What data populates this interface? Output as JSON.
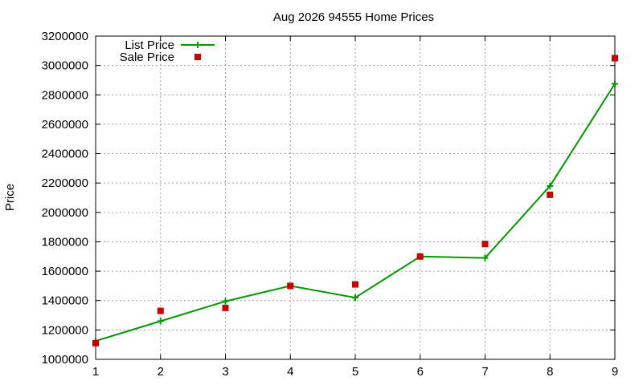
{
  "chart_data": {
    "type": "line",
    "title": "Aug 2026 94555 Home Prices",
    "xlabel": "",
    "ylabel": "Price",
    "x": [
      1,
      2,
      3,
      4,
      5,
      6,
      7,
      8,
      9
    ],
    "xlim": [
      1,
      9
    ],
    "ylim": [
      1000000,
      3200000
    ],
    "x_ticks": [
      "1",
      "2",
      "3",
      "4",
      "5",
      "6",
      "7",
      "8",
      "9"
    ],
    "y_ticks": [
      "1000000",
      "1200000",
      "1400000",
      "1600000",
      "1800000",
      "2000000",
      "2200000",
      "2400000",
      "2600000",
      "2800000",
      "3000000",
      "3200000"
    ],
    "grid": true,
    "legend_position": "top-left",
    "series": [
      {
        "name": "List Price",
        "style": "linespoints",
        "marker": "plus",
        "color": "#009900",
        "values": [
          1125000,
          1260000,
          1395000,
          1500000,
          1420000,
          1700000,
          1690000,
          2180000,
          2875000
        ]
      },
      {
        "name": "Sale Price",
        "style": "points",
        "marker": "square",
        "color": "#cc0000",
        "values": [
          1110000,
          1330000,
          1350000,
          1500000,
          1510000,
          1700000,
          1785000,
          2120000,
          3050000
        ]
      }
    ]
  }
}
